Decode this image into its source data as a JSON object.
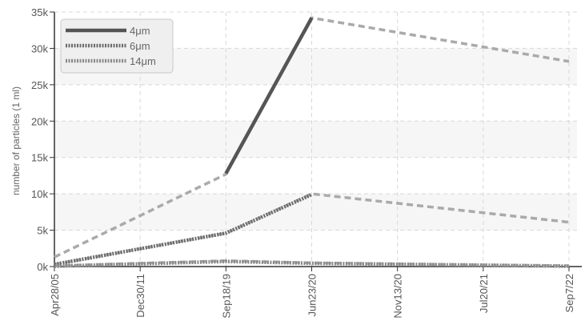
{
  "chart_data": {
    "type": "line",
    "title": "",
    "xlabel": "",
    "ylabel": "number of particles (1 ml)",
    "x_ticks": [
      "Apr28/05",
      "Dec30/11",
      "Sep18/19",
      "Jun23/20",
      "Nov13/20",
      "Jul20/21",
      "Sep7/22"
    ],
    "y_ticks": [
      "0k",
      "5k",
      "10k",
      "15k",
      "20k",
      "25k",
      "30k",
      "35k"
    ],
    "ylim": [
      0,
      35000
    ],
    "grid": true,
    "legend_position": "top-left",
    "series": [
      {
        "name": "4μm",
        "style": "solid",
        "color": "#555555",
        "points": [
          {
            "x": "Sep18/19",
            "y": 12800
          },
          {
            "x": "Jun23/20",
            "y": 34200
          }
        ]
      },
      {
        "name": "6μm",
        "style": "dotted",
        "color": "#6a6a6a",
        "points": [
          {
            "x": "Apr28/05",
            "y": 300
          },
          {
            "x": "Sep18/19",
            "y": 4600
          },
          {
            "x": "Jun23/20",
            "y": 9900
          }
        ]
      },
      {
        "name": "14μm",
        "style": "dotted",
        "color": "#888888",
        "points": [
          {
            "x": "Apr28/05",
            "y": 50
          },
          {
            "x": "Sep18/19",
            "y": 700
          },
          {
            "x": "Jun23/20",
            "y": 450
          },
          {
            "x": "Sep7/22",
            "y": 50
          }
        ]
      },
      {
        "name": "",
        "style": "dashed",
        "color": "#aaaaaa",
        "points": [
          {
            "x": "Apr28/05",
            "y": 1300
          },
          {
            "x": "Sep18/19",
            "y": 12700
          },
          {
            "x": "Jun23/20",
            "y": 34200
          },
          {
            "x": "Sep7/22",
            "y": 28200
          }
        ]
      },
      {
        "name": "",
        "style": "dashed",
        "color": "#aaaaaa",
        "points": [
          {
            "x": "Apr28/05",
            "y": 300
          },
          {
            "x": "Sep18/19",
            "y": 4600
          },
          {
            "x": "Jun23/20",
            "y": 10000
          },
          {
            "x": "Sep7/22",
            "y": 6100
          }
        ]
      },
      {
        "name": "",
        "style": "dashed",
        "color": "#aaaaaa",
        "points": [
          {
            "x": "Apr28/05",
            "y": 100
          },
          {
            "x": "Sep18/19",
            "y": 800
          },
          {
            "x": "Jun23/20",
            "y": 500
          },
          {
            "x": "Sep7/22",
            "y": 100
          }
        ]
      }
    ]
  }
}
